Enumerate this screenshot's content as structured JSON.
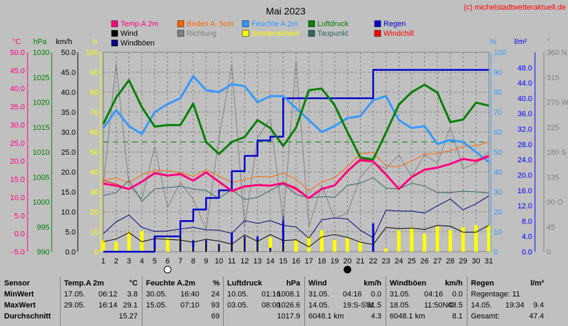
{
  "chart_data": {
    "type": "line",
    "title": "Mai 2023",
    "watermark": "(c) michelstadtwetteraktuell.de",
    "x": [
      1,
      2,
      3,
      4,
      5,
      6,
      7,
      8,
      9,
      10,
      11,
      12,
      13,
      14,
      15,
      16,
      17,
      18,
      19,
      20,
      21,
      22,
      23,
      24,
      25,
      26,
      27,
      28,
      29,
      30,
      31
    ],
    "axis_units": {
      "temp": "°C",
      "pressure": "hPa",
      "wind": "km/h",
      "sun": "h",
      "humidity": "%",
      "rain": "l/m²",
      "direction": "°"
    },
    "axes": {
      "temp": {
        "min": -5,
        "max": 50,
        "ticks": [
          "50.0",
          "45.0",
          "40.0",
          "35.0",
          "30.0",
          "25.0",
          "20.0",
          "15.0",
          "10.0",
          "5.0",
          "0.0",
          "-5.0"
        ],
        "color": "#ff0080"
      },
      "pressure": {
        "min": 990,
        "max": 1030,
        "ticks": [
          "1030",
          "1025",
          "1020",
          "1015",
          "1010",
          "1005",
          "1000",
          "995",
          "990"
        ],
        "color": "#008000"
      },
      "wind": {
        "min": 0,
        "max": 50,
        "ticks": [
          "50.0",
          "45.0",
          "40.0",
          "35.0",
          "30.0",
          "25.0",
          "20.0",
          "15.0",
          "10.0",
          "5.0",
          "0.0"
        ],
        "color": "#000000"
      },
      "sun": {
        "min": 0,
        "max": 100,
        "ticks": [
          "100",
          "90",
          "80",
          "70",
          "60",
          "50",
          "40",
          "30",
          "20",
          "10",
          "0"
        ],
        "color": "#ffff00"
      },
      "humidity": {
        "min": 0,
        "max": 100,
        "ticks": [
          "100",
          "90",
          "80",
          "70",
          "60",
          "50",
          "40",
          "30",
          "20",
          "10",
          "0"
        ],
        "color": "#3399ff"
      },
      "rain": {
        "min": 0,
        "max": 52,
        "ticks": [
          "48.0",
          "44.0",
          "40.0",
          "36.0",
          "32.0",
          "28.0",
          "24.0",
          "20.0",
          "16.0",
          "12.0",
          "8.0",
          "4.0",
          "0.0"
        ],
        "color": "#0000ff"
      },
      "direction": {
        "min": 0,
        "max": 360,
        "ticks": [
          "360 N",
          "315",
          "270 W",
          "225",
          "180 S",
          "135",
          "90 O",
          "45",
          "0"
        ],
        "color": "#808080"
      }
    },
    "legend": [
      {
        "name": "Temp.A 2m",
        "color": "#ff0080"
      },
      {
        "name": "Boden A. 5cm",
        "color": "#ff6600"
      },
      {
        "name": "Feuchte A.2m",
        "color": "#3399ff"
      },
      {
        "name": "Luftdruck",
        "color": "#008000"
      },
      {
        "name": "Regen",
        "color": "#0000cc"
      },
      {
        "name": "Wind",
        "color": "#000000"
      },
      {
        "name": "Richtung",
        "color": "#808080"
      },
      {
        "name": "Sonnenschein",
        "color": "#ffff00"
      },
      {
        "name": "Taupunkt",
        "color": "#336666"
      },
      {
        "name": "Windchill",
        "color": "#ff0000"
      },
      {
        "name": "Windböen",
        "color": "#000080"
      }
    ],
    "series": {
      "temp": [
        13.8,
        13.2,
        12.3,
        14.3,
        16.7,
        16.0,
        16.4,
        14.6,
        16.9,
        14.3,
        11.8,
        13.0,
        13.4,
        13.2,
        13.9,
        12.3,
        9.8,
        12.3,
        13.3,
        17.2,
        20.4,
        19.9,
        16.3,
        12.3,
        15.6,
        17.6,
        18.2,
        19.2,
        20.6,
        20.0,
        21.3
      ],
      "ground": [
        14.8,
        15.3,
        14.0,
        16.2,
        17.4,
        17.4,
        16.8,
        15.8,
        17.6,
        15.9,
        14.1,
        14.9,
        15.8,
        15.6,
        16.6,
        15.0,
        11.8,
        14.2,
        15.4,
        18.5,
        22.0,
        22.4,
        18.7,
        18.4,
        20.0,
        21.9,
        22.0,
        22.9,
        24.0,
        24.2,
        25.2
      ],
      "humidity": [
        62,
        71,
        63,
        59,
        70,
        74,
        77,
        88,
        81,
        80,
        84,
        83,
        75,
        78,
        78,
        72,
        66,
        60,
        63,
        67,
        68,
        76,
        78,
        66,
        62,
        63,
        54,
        56,
        55,
        50,
        45
      ],
      "pressure": [
        1015.6,
        1020.9,
        1024.4,
        1019.0,
        1015.1,
        1015.4,
        1015.4,
        1019.7,
        1012.0,
        1009.6,
        1012.0,
        1013.0,
        1016.4,
        1014.8,
        1011.2,
        1014.9,
        1022.4,
        1022.7,
        1019.4,
        1014.0,
        1008.9,
        1008.5,
        1013.9,
        1019.5,
        1022.0,
        1023.5,
        1021.9,
        1016.0,
        1016.5,
        1019.9,
        1019.3
      ],
      "rain": [
        0,
        0,
        0,
        0,
        4,
        4,
        8,
        11,
        14,
        16,
        21,
        25,
        29,
        30,
        40,
        40,
        40,
        40,
        40,
        40,
        40,
        47.4,
        47.4,
        47.4,
        47.4,
        47.4,
        47.4,
        47.4,
        47.4,
        47.4,
        47.4
      ],
      "wind": [
        2.5,
        3.2,
        4.8,
        2.5,
        3.3,
        3.1,
        2.9,
        2.4,
        3.1,
        2.7,
        1.9,
        4.2,
        2.6,
        4.3,
        2.8,
        3.0,
        1.2,
        3.7,
        4.3,
        3.6,
        2.4,
        1.8,
        6.1,
        5.8,
        5.9,
        5.6,
        6.6,
        6.4,
        4.9,
        4.9,
        6.6
      ],
      "gust": [
        4.5,
        7.5,
        9.2,
        6.1,
        5.1,
        5.2,
        5.7,
        6.1,
        5.5,
        5.4,
        4.6,
        7.8,
        7.1,
        7.8,
        6.6,
        6.2,
        3.4,
        8.0,
        8.5,
        8.2,
        5.4,
        3.5,
        10.4,
        10.2,
        10.2,
        9.7,
        11.5,
        13.2,
        10.5,
        12.0,
        14.0
      ],
      "direction": [
        120,
        340,
        120,
        95,
        190,
        80,
        125,
        95,
        40,
        205,
        338,
        45,
        205,
        240,
        55,
        345,
        45,
        120,
        60,
        70,
        135,
        160,
        150,
        175,
        135,
        175,
        160,
        225,
        150,
        160,
        180
      ],
      "sunshine": [
        3.2,
        2.8,
        5.6,
        5.8,
        0.9,
        4.0,
        4.6,
        1.4,
        2.8,
        1.9,
        2.5,
        4.0,
        2.9,
        4.0,
        2.4,
        3.3,
        4.4,
        6.0,
        3.3,
        3.8,
        2.8,
        0,
        0.9,
        6.0,
        6.8,
        5.1,
        7.1,
        6.1,
        6.9,
        7.4,
        7.4
      ],
      "dewpoint": [
        10.5,
        11.3,
        14.7,
        8.9,
        12.3,
        12.7,
        13.0,
        12.3,
        11.9,
        9.7,
        12.1,
        9.4,
        10.0,
        11.9,
        13.7,
        10.8,
        9.8,
        10.2,
        10.0,
        13.3,
        13.9,
        15.4,
        12.5,
        12.3,
        13.9,
        13.1,
        11.3,
        11.3,
        11.7,
        11.5,
        11.2
      ],
      "windchill": [
        14.6,
        13.7,
        12.2,
        14.4,
        16.4,
        16.1,
        16.6,
        14.8,
        16.7,
        14.2,
        11.5,
        12.9,
        13.5,
        13.2,
        14.1,
        12.7,
        9.9,
        12.2,
        13.3,
        17.5,
        20.0,
        19.7,
        16.1,
        12.5,
        15.7,
        17.8,
        18.0,
        19.3,
        20.5,
        20.3,
        21.6
      ]
    },
    "markers": [
      {
        "day": 6,
        "symbol": "○"
      },
      {
        "day": 20,
        "symbol": "●"
      }
    ],
    "dashed_reference": {
      "value": 1012,
      "axis": "pressure"
    }
  },
  "stats": {
    "sensor_header": "Sensor",
    "row_labels": [
      "MinWert",
      "MaxWert",
      "Durchschnitt"
    ],
    "blocks": [
      {
        "title": "Temp.A 2m",
        "unit": "°C",
        "min": [
          "17.05.",
          "06:12",
          "3.8"
        ],
        "max": [
          "29.05.",
          "16:14",
          "29.1"
        ],
        "avg": [
          "",
          "",
          "15.27"
        ]
      },
      {
        "title": "Feuchte A.2m",
        "unit": "%",
        "min": [
          "30.05.",
          "16:40",
          "24"
        ],
        "max": [
          "15.05.",
          "07:10",
          "93"
        ],
        "avg": [
          "",
          "",
          "69"
        ]
      },
      {
        "title": "Luftdruck",
        "unit": "hPa",
        "min": [
          "10.05.",
          "01:16",
          "1008.1"
        ],
        "max": [
          "03.05.",
          "08:00",
          "1026.6"
        ],
        "avg": [
          "",
          "",
          "1017.9"
        ]
      },
      {
        "title": "Wind",
        "unit": "km/h",
        "min": [
          "31.05.",
          "04:16",
          "0.0"
        ],
        "max": [
          "14.05.",
          "19:S-SW",
          "31.5"
        ],
        "avg": [
          "6048.1 km",
          "",
          "4.3"
        ]
      },
      {
        "title": "Windböen",
        "unit": "km/h",
        "min": [
          "31.05.",
          "04:16",
          "0.0"
        ],
        "max": [
          "18.05.",
          "11:50NO",
          "43.5"
        ],
        "avg": [
          "6048.1 km",
          "",
          "8.1"
        ]
      },
      {
        "title": "Regen",
        "unit": "l/m²",
        "min": [
          "Regentage: 11",
          "",
          ""
        ],
        "max": [
          "14.05.",
          "19:34",
          "9.4"
        ],
        "avg": [
          "Gesamt:",
          "",
          "47.4"
        ]
      }
    ]
  }
}
